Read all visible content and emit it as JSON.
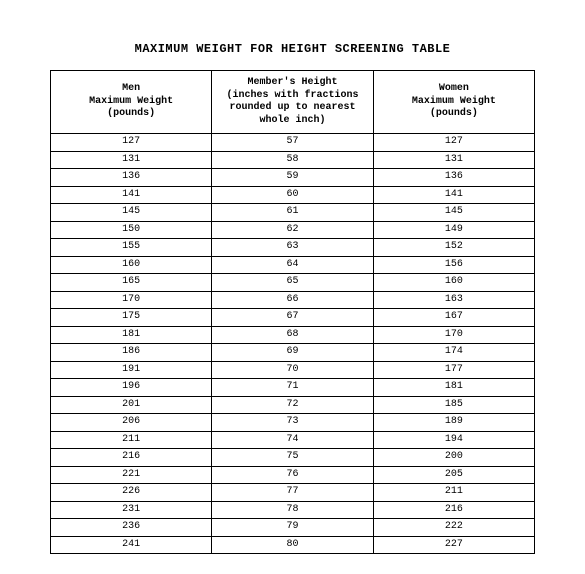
{
  "title": "MAXIMUM WEIGHT FOR HEIGHT SCREENING TABLE",
  "table": {
    "type": "table",
    "background_color": "#ffffff",
    "border_color": "#000000",
    "font_family": "Courier New",
    "header_fontsize": 10,
    "cell_fontsize": 10,
    "columns": [
      {
        "lines": [
          "Men",
          "Maximum Weight",
          "(pounds)"
        ],
        "align": "center",
        "width_pct": 33.3
      },
      {
        "lines": [
          "Member's Height",
          "(inches with fractions",
          "rounded up to nearest",
          "whole inch)"
        ],
        "align": "center",
        "width_pct": 33.4
      },
      {
        "lines": [
          "Women",
          "Maximum Weight",
          "(pounds)"
        ],
        "align": "center",
        "width_pct": 33.3
      }
    ],
    "rows": [
      [
        "127",
        "57",
        "127"
      ],
      [
        "131",
        "58",
        "131"
      ],
      [
        "136",
        "59",
        "136"
      ],
      [
        "141",
        "60",
        "141"
      ],
      [
        "145",
        "61",
        "145"
      ],
      [
        "150",
        "62",
        "149"
      ],
      [
        "155",
        "63",
        "152"
      ],
      [
        "160",
        "64",
        "156"
      ],
      [
        "165",
        "65",
        "160"
      ],
      [
        "170",
        "66",
        "163"
      ],
      [
        "175",
        "67",
        "167"
      ],
      [
        "181",
        "68",
        "170"
      ],
      [
        "186",
        "69",
        "174"
      ],
      [
        "191",
        "70",
        "177"
      ],
      [
        "196",
        "71",
        "181"
      ],
      [
        "201",
        "72",
        "185"
      ],
      [
        "206",
        "73",
        "189"
      ],
      [
        "211",
        "74",
        "194"
      ],
      [
        "216",
        "75",
        "200"
      ],
      [
        "221",
        "76",
        "205"
      ],
      [
        "226",
        "77",
        "211"
      ],
      [
        "231",
        "78",
        "216"
      ],
      [
        "236",
        "79",
        "222"
      ],
      [
        "241",
        "80",
        "227"
      ]
    ]
  }
}
